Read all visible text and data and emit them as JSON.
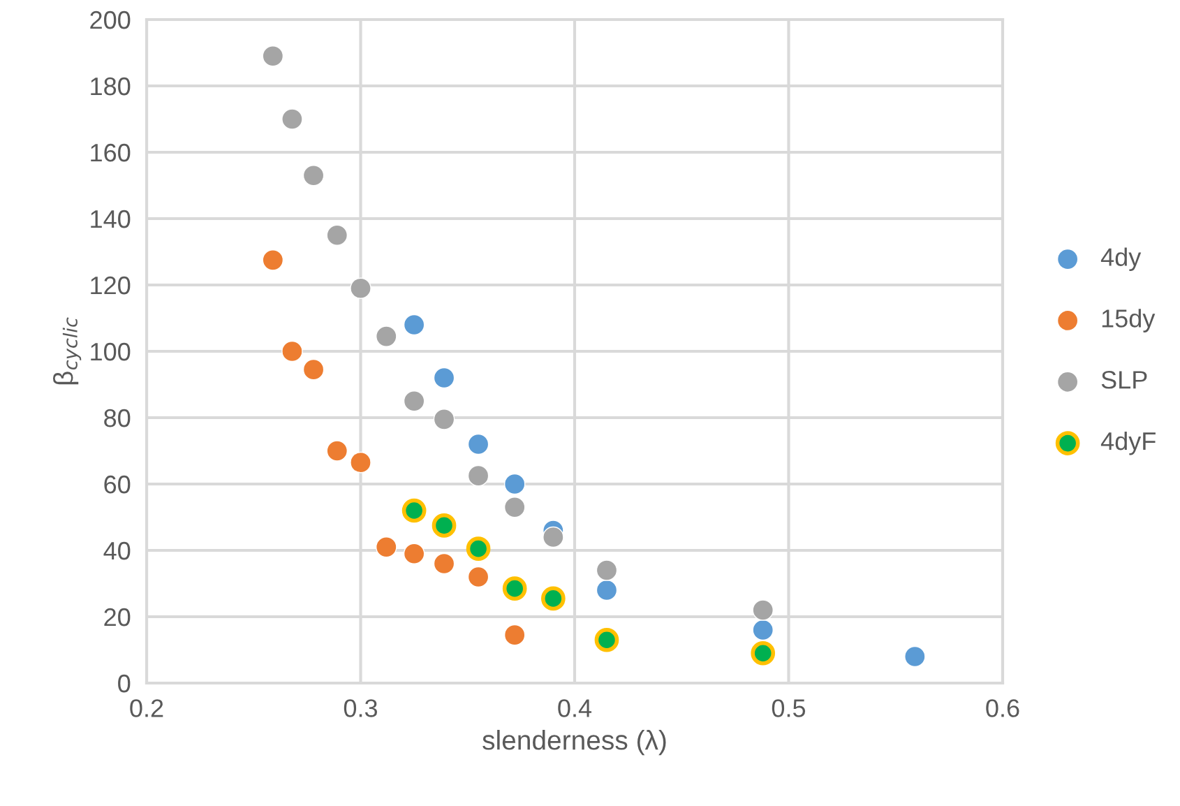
{
  "chart_data": {
    "type": "scatter",
    "xlabel": "slenderness (λ)",
    "ylabel": "β$_{cyclic}$",
    "xlim": [
      0.2,
      0.6
    ],
    "xticks": [
      0.2,
      0.3,
      0.4,
      0.5,
      0.6
    ],
    "ylim": [
      0,
      200
    ],
    "yticks": [
      0,
      20,
      40,
      60,
      80,
      100,
      120,
      140,
      160,
      180,
      200
    ],
    "grid": true,
    "legend": "right",
    "marker": "circle",
    "series": [
      {
        "name": "4dy",
        "color": "#5b9bd5",
        "x": [
          0.325,
          0.339,
          0.355,
          0.372,
          0.39,
          0.415,
          0.488,
          0.559
        ],
        "values": [
          108,
          92,
          72,
          60,
          46,
          28,
          16,
          8
        ]
      },
      {
        "name": "15dy",
        "color": "#ed7d31",
        "x": [
          0.259,
          0.268,
          0.278,
          0.289,
          0.3,
          0.312,
          0.325,
          0.339,
          0.355,
          0.372
        ],
        "values": [
          127.5,
          100,
          94.5,
          70,
          66.5,
          41,
          39,
          36,
          32,
          14.5
        ]
      },
      {
        "name": "SLP",
        "color": "#a5a5a5",
        "x": [
          0.259,
          0.268,
          0.278,
          0.289,
          0.3,
          0.312,
          0.325,
          0.339,
          0.355,
          0.372,
          0.39,
          0.415,
          0.488
        ],
        "values": [
          189,
          170,
          153,
          135,
          119,
          104.5,
          85,
          79.5,
          62.5,
          53,
          44,
          34,
          22
        ]
      },
      {
        "name": "4dyF",
        "color": "#00b050",
        "x": [
          0.325,
          0.339,
          0.355,
          0.372,
          0.39,
          0.415,
          0.488
        ],
        "values": [
          52,
          47.5,
          40.5,
          28.5,
          25.5,
          13,
          9
        ]
      }
    ]
  }
}
